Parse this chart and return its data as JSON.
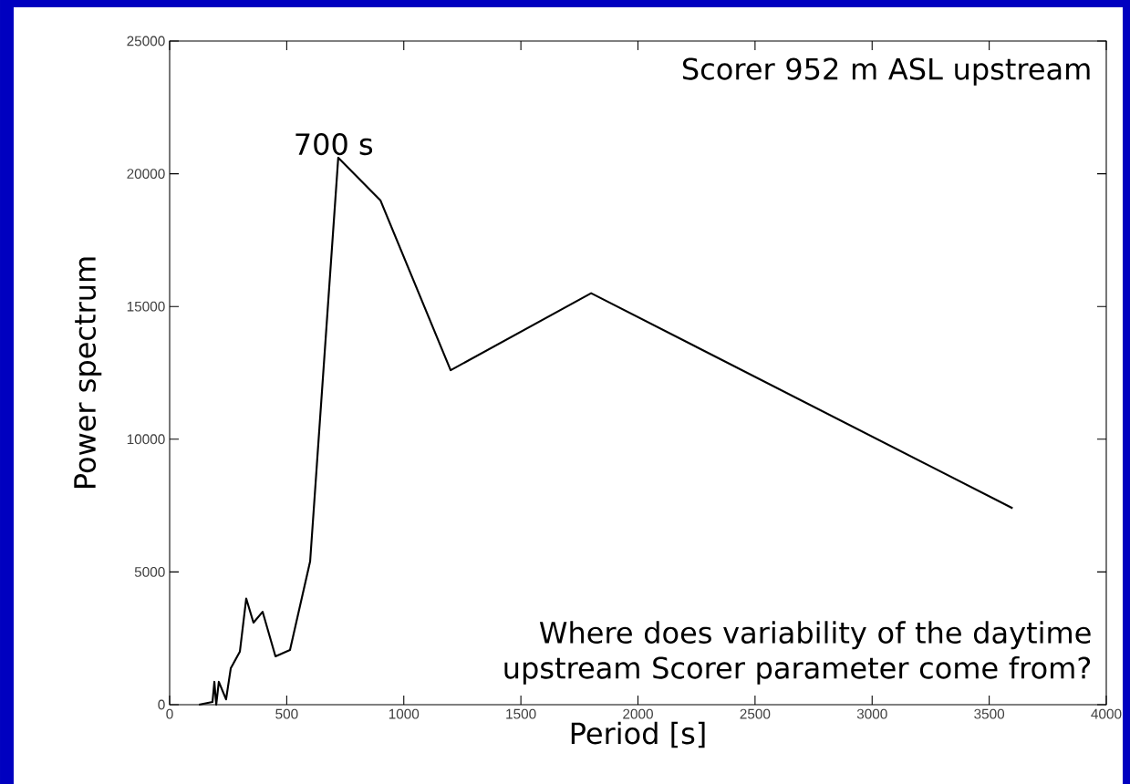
{
  "chart_data": {
    "type": "line",
    "xlabel": "Period [s]",
    "ylabel": "Power spectrum",
    "x": [
      125,
      183,
      191,
      199,
      210,
      241,
      261,
      300,
      327,
      358,
      397,
      452,
      514,
      600,
      720,
      900,
      1200,
      1800,
      3600
    ],
    "series": [
      {
        "color": "#000000",
        "values": [
          0,
          100,
          860,
          0,
          860,
          200,
          1370,
          2000,
          4000,
          3090,
          3500,
          1820,
          2060,
          5400,
          20600,
          19000,
          12600,
          15500,
          7400
        ]
      }
    ],
    "xlim": [
      0,
      4000
    ],
    "ylim": [
      0,
      25000
    ],
    "xticks": [
      0,
      500,
      1000,
      1500,
      2000,
      2500,
      3000,
      3500,
      4000
    ],
    "yticks": [
      0,
      5000,
      10000,
      15000,
      20000,
      25000
    ],
    "grid": false,
    "marker": "none",
    "line_style": "solid",
    "annotations": [
      {
        "text": "700 s",
        "x": 700,
        "y": 20600
      },
      "Scorer 952 m ASL upstream",
      "Where does variability of the daytime upstream Scorer parameter come from?"
    ]
  }
}
